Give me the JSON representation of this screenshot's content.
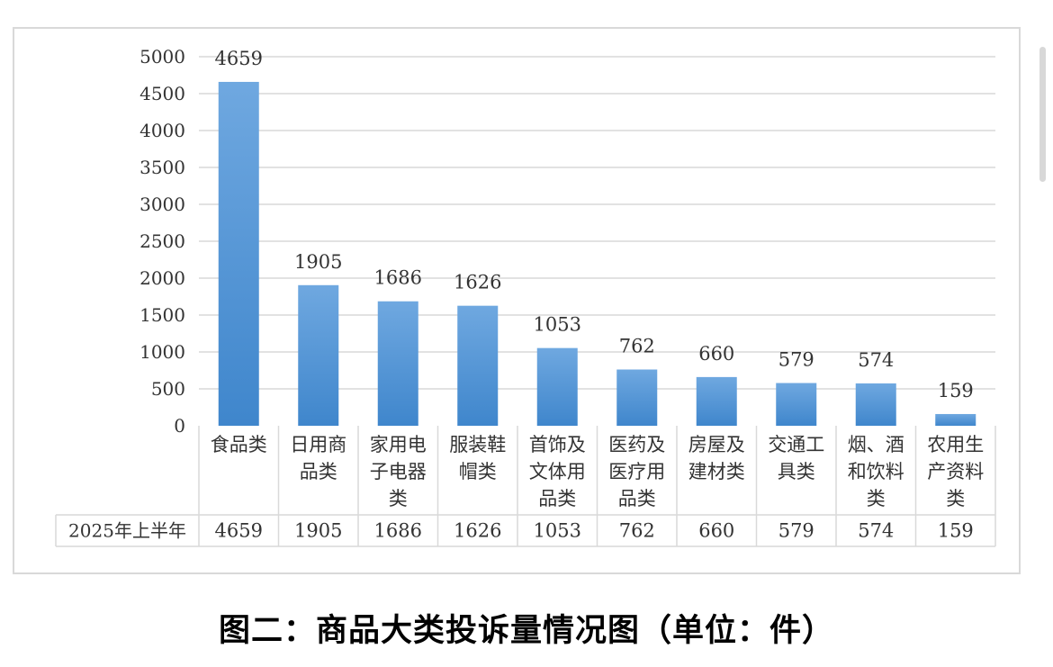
{
  "caption": "图二：商品大类投诉量情况图（单位：件）",
  "chart_data": {
    "type": "bar",
    "categories": [
      [
        "食品类"
      ],
      [
        "日用商",
        "品类"
      ],
      [
        "家用电",
        "子电器",
        "类"
      ],
      [
        "服装鞋",
        "帽类"
      ],
      [
        "首饰及",
        "文体用",
        "品类"
      ],
      [
        "医药及",
        "医疗用",
        "品类"
      ],
      [
        "房屋及",
        "建材类"
      ],
      [
        "交通工",
        "具类"
      ],
      [
        "烟、酒",
        "和饮料",
        "类"
      ],
      [
        "农用生",
        "产资料",
        "类"
      ]
    ],
    "series": [
      {
        "name": "2025年上半年",
        "values": [
          4659,
          1905,
          1686,
          1626,
          1053,
          762,
          660,
          579,
          574,
          159
        ]
      }
    ],
    "y_ticks": [
      "0",
      "500",
      "1000",
      "1500",
      "2000",
      "2500",
      "3000",
      "3500",
      "4000",
      "4500",
      "5000"
    ],
    "ylim": [
      0,
      5000
    ],
    "y_tick_step": 500,
    "grid": true,
    "data_table": true,
    "colors": {
      "bar_top": "#6fa8e0",
      "bar_bottom": "#3f86cc",
      "grid": "#d9d9d9",
      "table_border": "#d9d9d9"
    }
  }
}
